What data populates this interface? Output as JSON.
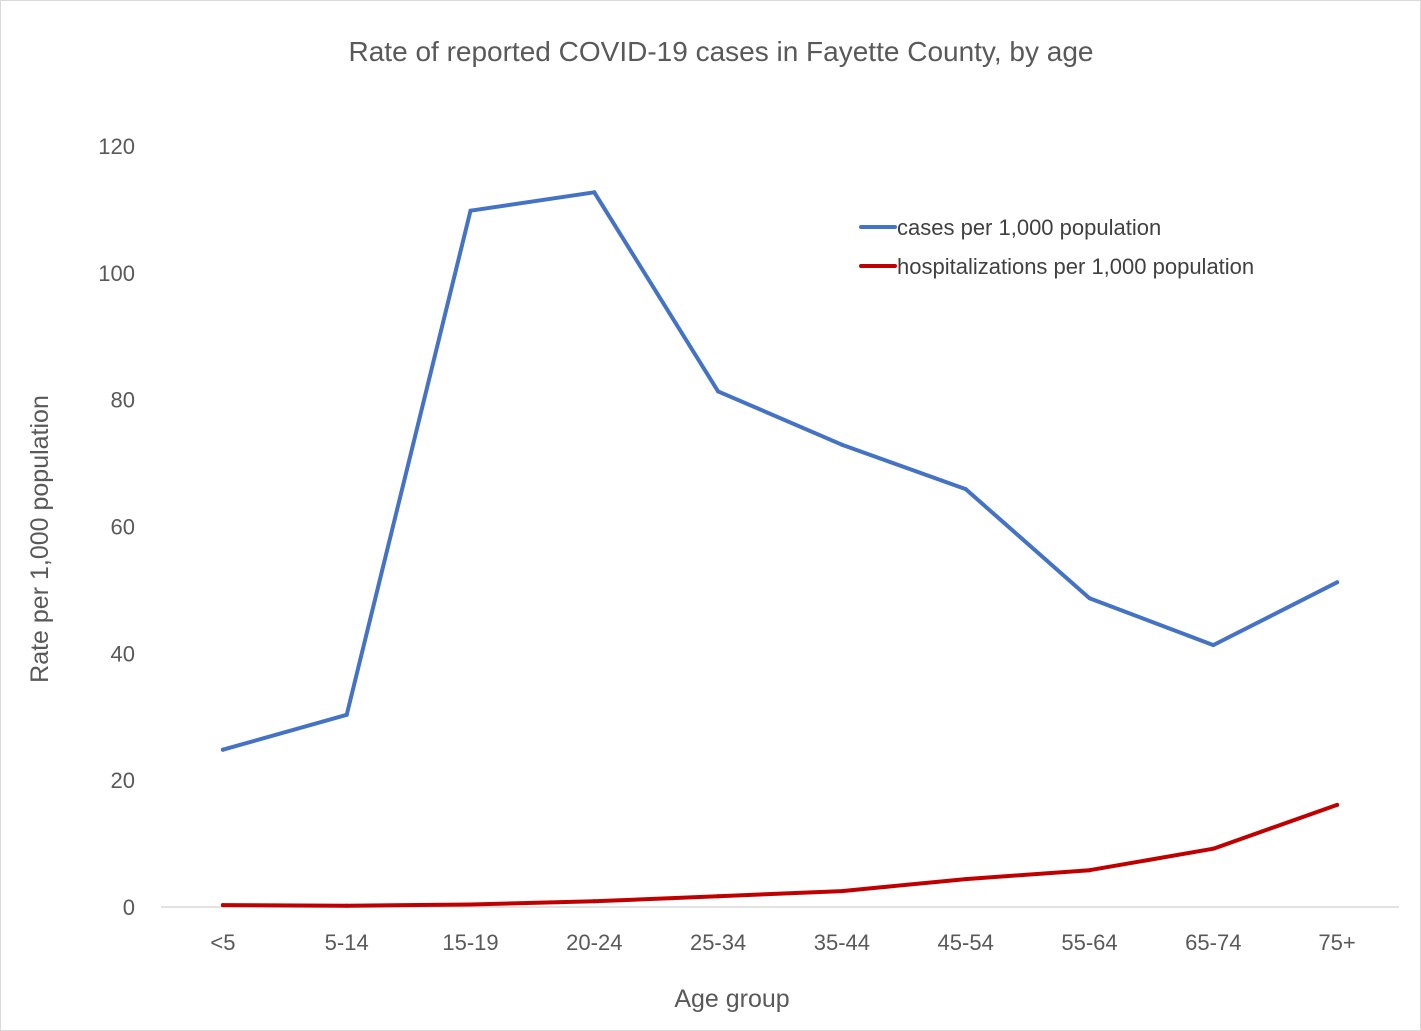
{
  "chart_data": {
    "type": "line",
    "title": "Rate of reported COVID-19 cases in Fayette County, by age",
    "xlabel": "Age group",
    "ylabel": "Rate per 1,000 population",
    "categories": [
      "<5",
      "5-14",
      "15-19",
      "20-24",
      "25-34",
      "35-44",
      "45-54",
      "55-64",
      "65-74",
      "75+"
    ],
    "ylim": [
      0,
      120
    ],
    "yticks": [
      0,
      20,
      40,
      60,
      80,
      100,
      120
    ],
    "grid": false,
    "legend_position": "top-right",
    "series": [
      {
        "name": "cases per 1,000 population",
        "color": "#4472C4",
        "values": [
          24.8,
          30.3,
          109.8,
          112.7,
          81.3,
          72.9,
          65.9,
          48.7,
          41.3,
          51.2
        ]
      },
      {
        "name": "hospitalizations per 1,000 population",
        "color": "#C00000",
        "values": [
          0.3,
          0.2,
          0.4,
          0.9,
          1.7,
          2.5,
          4.4,
          5.8,
          9.2,
          16.1
        ]
      }
    ]
  }
}
